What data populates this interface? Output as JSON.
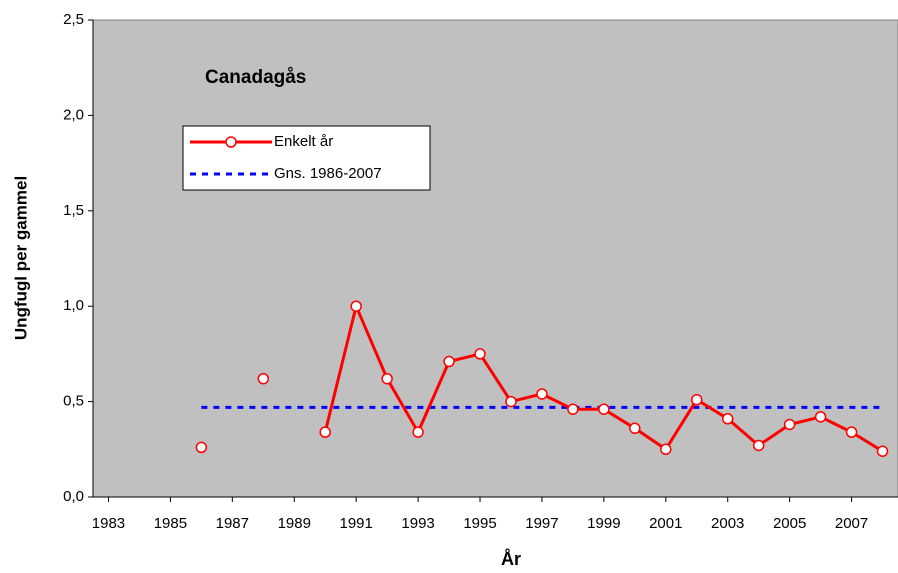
{
  "chart_data": {
    "type": "line",
    "title": "Canadagås",
    "xlabel": "År",
    "ylabel": "Ungfugl per gammel",
    "xlim": [
      1982.5,
      2008.5
    ],
    "xticks": [
      1983,
      1985,
      1987,
      1989,
      1991,
      1993,
      1995,
      1997,
      1999,
      2001,
      2003,
      2005,
      2007
    ],
    "ylim": [
      0,
      2.5
    ],
    "yticks": [
      {
        "value": 0,
        "label": "0,0"
      },
      {
        "value": 0.5,
        "label": "0,5"
      },
      {
        "value": 1,
        "label": "1,0"
      },
      {
        "value": 1.5,
        "label": "1,5"
      },
      {
        "value": 2,
        "label": "2,0"
      },
      {
        "value": 2.5,
        "label": "2,5"
      }
    ],
    "plot_background": "#c0c0c0",
    "legend": "upper left",
    "series": [
      {
        "name": "Enkelt år",
        "color": "#ff0000",
        "marker": "circle",
        "x": [
          1983,
          1984,
          1985,
          1986,
          1987,
          1988,
          1989,
          1990,
          1991,
          1992,
          1993,
          1994,
          1995,
          1996,
          1997,
          1998,
          1999,
          2000,
          2001,
          2002,
          2003,
          2004,
          2005,
          2006,
          2007,
          2008
        ],
        "values": [
          null,
          null,
          null,
          0.26,
          null,
          0.62,
          null,
          0.34,
          1.0,
          0.62,
          0.34,
          0.71,
          0.75,
          0.5,
          0.54,
          0.46,
          0.46,
          0.36,
          0.25,
          0.51,
          0.41,
          0.27,
          0.38,
          0.42,
          0.34,
          0.24
        ]
      },
      {
        "name": "Gns. 1986-2007",
        "color": "#0000ff",
        "dash": "dotted",
        "x": [
          1986,
          2008
        ],
        "values": [
          0.47,
          0.47
        ]
      }
    ]
  }
}
